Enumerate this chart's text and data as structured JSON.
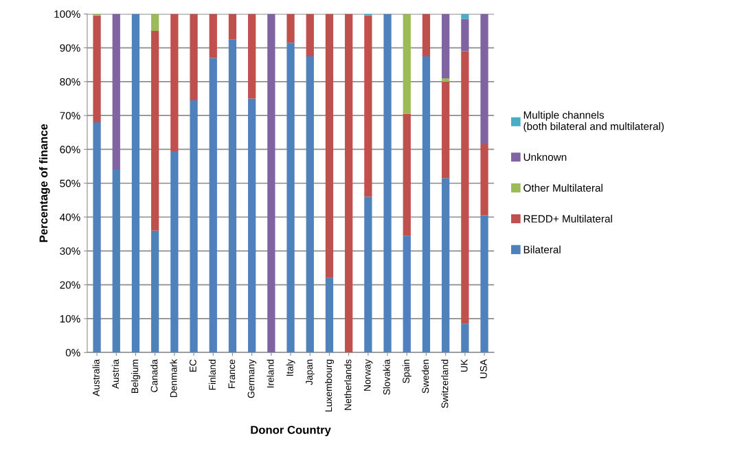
{
  "chart_data": {
    "type": "bar",
    "stacked": true,
    "xlabel": "Donor Country",
    "ylabel": "Percentage of finance",
    "categories": [
      "Australia",
      "Austria",
      "Belgium",
      "Canada",
      "Denmark",
      "EC",
      "Finland",
      "France",
      "Germany",
      "Ireland",
      "Italy",
      "Japan",
      "Luxembourg",
      "Netherlands",
      "Norway",
      "Slovakia",
      "Spain",
      "Sweden",
      "Switzerland",
      "UK",
      "USA"
    ],
    "series": [
      {
        "name": "Bilateral",
        "color": "#4f81bd",
        "values": [
          68,
          54,
          100,
          36,
          59.5,
          74.5,
          87,
          92.5,
          75,
          0,
          91.5,
          87.5,
          22,
          0,
          46,
          100,
          34.5,
          87.5,
          51.5,
          8.5,
          40.5
        ]
      },
      {
        "name": "REDD+ Multilateral",
        "color": "#c0504d",
        "values": [
          31.5,
          0,
          0,
          59,
          40.5,
          25.5,
          13,
          7.5,
          25,
          0,
          8.5,
          12.5,
          78,
          100,
          53.5,
          0,
          36,
          12.5,
          28.5,
          80.5,
          21
        ]
      },
      {
        "name": "Other Multilateral",
        "color": "#9bbb59",
        "values": [
          0.5,
          0,
          0,
          5,
          0,
          0,
          0,
          0,
          0,
          0,
          0,
          0,
          0,
          0,
          0,
          0,
          29.5,
          0,
          1,
          0,
          0
        ]
      },
      {
        "name": "Unknown",
        "color": "#8064a2",
        "values": [
          0,
          46,
          0,
          0,
          0,
          0,
          0,
          0,
          0,
          100,
          0,
          0,
          0,
          0,
          0,
          0,
          0,
          0,
          19,
          9.5,
          38.5
        ]
      },
      {
        "name": "Multiple channels (both bilateral and multilateral)",
        "color": "#4bacc6",
        "values": [
          0,
          0,
          0,
          0,
          0,
          0,
          0,
          0,
          0,
          0,
          0,
          0,
          0,
          0,
          0.5,
          0,
          0,
          0,
          0,
          1.5,
          0
        ]
      }
    ],
    "ylim": [
      0,
      100
    ],
    "yticks": [
      {
        "value": 0,
        "label": "0%"
      },
      {
        "value": 10,
        "label": "10%"
      },
      {
        "value": 20,
        "label": "20%"
      },
      {
        "value": 30,
        "label": "30%"
      },
      {
        "value": 40,
        "label": "40%"
      },
      {
        "value": 50,
        "label": "50%"
      },
      {
        "value": 60,
        "label": "60%"
      },
      {
        "value": 70,
        "label": "70%"
      },
      {
        "value": 80,
        "label": "80%"
      },
      {
        "value": 90,
        "label": "90%"
      },
      {
        "value": 100,
        "label": "100%"
      }
    ],
    "grid": "y",
    "legend": "right"
  }
}
